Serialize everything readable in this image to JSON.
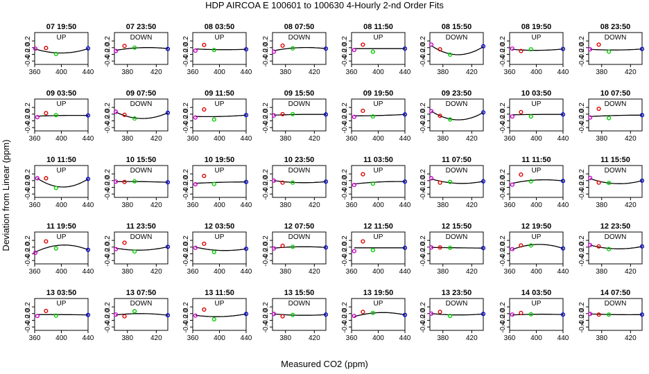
{
  "chart_data": {
    "type": "scatter",
    "title": "HDP   AIRCOA E   100601 to 100630   4-Hourly 2-nd Order Fits",
    "xlabel": "Measured CO2 (ppm)",
    "ylabel": "Deviation from Linear (ppm)",
    "xlim_wide": [
      360,
      440
    ],
    "xlim_narrow": [
      362,
      436
    ],
    "ylim": [
      -0.5,
      0.45
    ],
    "yticks": [
      -0.4,
      -0.2,
      0.0,
      0.2
    ],
    "ytick_labels": [
      "-0.4",
      "-0.2",
      "0.0",
      "0.2"
    ],
    "xticks_wide": [
      360,
      400,
      440
    ],
    "xticks_narrow": [
      380,
      420
    ],
    "point_colors": {
      "s1": "#cc00cc",
      "s2": "#dd0000",
      "s3": "#00cc00",
      "s4": "#0000cc"
    },
    "panels": [
      {
        "title": "07 19:50",
        "label": "UP",
        "narrow": false,
        "x": [
          361,
          377,
          392,
          440
        ],
        "y": [
          -0.03,
          -0.01,
          -0.19,
          -0.02
        ],
        "fit": [
          -0.04,
          -0.16,
          -0.03
        ]
      },
      {
        "title": "07 23:50",
        "label": "DOWN",
        "narrow": true,
        "x": [
          364,
          376,
          390,
          436
        ],
        "y": [
          -0.1,
          0.05,
          0.0,
          -0.04
        ],
        "fit": [
          -0.08,
          0.0,
          -0.03
        ]
      },
      {
        "title": "08 03:50",
        "label": "UP",
        "narrow": false,
        "x": [
          364,
          377,
          392,
          440
        ],
        "y": [
          -0.09,
          0.08,
          -0.07,
          -0.05
        ],
        "fit": [
          -0.04,
          -0.06,
          -0.05
        ]
      },
      {
        "title": "08 07:50",
        "label": "DOWN",
        "narrow": true,
        "x": [
          364,
          376,
          390,
          436
        ],
        "y": [
          -0.12,
          0.06,
          -0.02,
          -0.03
        ],
        "fit": [
          -0.09,
          0.0,
          -0.03
        ]
      },
      {
        "title": "08 11:50",
        "label": "UP",
        "narrow": false,
        "x": [
          364,
          377,
          392,
          440
        ],
        "y": [
          -0.07,
          0.09,
          -0.12,
          -0.03
        ],
        "fit": [
          -0.03,
          -0.03,
          -0.03
        ]
      },
      {
        "title": "08 15:50",
        "label": "DOWN",
        "narrow": true,
        "x": [
          364,
          376,
          390,
          436
        ],
        "y": [
          0.09,
          -0.05,
          -0.21,
          0.04
        ],
        "fit": [
          0.06,
          -0.21,
          0.03
        ]
      },
      {
        "title": "08 19:50",
        "label": "UP",
        "narrow": false,
        "x": [
          364,
          377,
          392,
          440
        ],
        "y": [
          -0.03,
          -0.1,
          -0.05,
          -0.04
        ],
        "fit": [
          -0.05,
          -0.08,
          -0.04
        ]
      },
      {
        "title": "08 23:50",
        "label": "DOWN",
        "narrow": true,
        "x": [
          364,
          376,
          390,
          436
        ],
        "y": [
          -0.05,
          0.09,
          -0.12,
          -0.04
        ],
        "fit": [
          -0.05,
          -0.07,
          -0.04
        ]
      },
      {
        "title": "09 03:50",
        "label": "UP",
        "narrow": false,
        "x": [
          364,
          377,
          392,
          440
        ],
        "y": [
          -0.09,
          0.03,
          -0.03,
          -0.04
        ],
        "fit": [
          -0.06,
          -0.04,
          -0.04
        ]
      },
      {
        "title": "09 07:50",
        "label": "DOWN",
        "narrow": true,
        "x": [
          364,
          376,
          390,
          436
        ],
        "y": [
          0.07,
          -0.02,
          -0.13,
          0.04
        ],
        "fit": [
          0.06,
          -0.13,
          0.04
        ]
      },
      {
        "title": "09 11:50",
        "label": "UP",
        "narrow": false,
        "x": [
          364,
          377,
          392,
          440
        ],
        "y": [
          -0.1,
          0.14,
          -0.16,
          -0.03
        ],
        "fit": [
          -0.07,
          -0.07,
          -0.03
        ]
      },
      {
        "title": "09 15:50",
        "label": "DOWN",
        "narrow": true,
        "x": [
          364,
          376,
          390,
          436
        ],
        "y": [
          -0.04,
          0.0,
          0.0,
          -0.01
        ],
        "fit": [
          -0.03,
          -0.01,
          -0.01
        ]
      },
      {
        "title": "09 19:50",
        "label": "UP",
        "narrow": false,
        "x": [
          364,
          377,
          392,
          440
        ],
        "y": [
          -0.08,
          0.1,
          -0.07,
          -0.01
        ],
        "fit": [
          -0.05,
          -0.04,
          -0.01
        ]
      },
      {
        "title": "09 23:50",
        "label": "DOWN",
        "narrow": true,
        "x": [
          364,
          376,
          390,
          436
        ],
        "y": [
          0.09,
          -0.05,
          -0.16,
          0.05
        ],
        "fit": [
          0.09,
          -0.17,
          0.05
        ]
      },
      {
        "title": "10 03:50",
        "label": "UP",
        "narrow": false,
        "x": [
          364,
          377,
          392,
          440
        ],
        "y": [
          -0.07,
          0.06,
          -0.07,
          -0.01
        ],
        "fit": [
          -0.02,
          -0.01,
          -0.01
        ]
      },
      {
        "title": "10 07:50",
        "label": "DOWN",
        "narrow": true,
        "x": [
          364,
          376,
          390,
          436
        ],
        "y": [
          -0.1,
          0.16,
          -0.12,
          -0.03
        ],
        "fit": [
          -0.07,
          -0.04,
          -0.03
        ]
      },
      {
        "title": "10 11:50",
        "label": "UP",
        "narrow": false,
        "x": [
          364,
          377,
          392,
          440
        ],
        "y": [
          0.07,
          0.07,
          -0.22,
          0.05
        ],
        "fit": [
          0.07,
          -0.19,
          0.05
        ]
      },
      {
        "title": "10 15:50",
        "label": "DOWN",
        "narrow": true,
        "x": [
          364,
          376,
          390,
          436
        ],
        "y": [
          -0.03,
          -0.04,
          -0.02,
          -0.05
        ],
        "fit": [
          -0.03,
          -0.03,
          -0.05
        ]
      },
      {
        "title": "10 19:50",
        "label": "UP",
        "narrow": false,
        "x": [
          364,
          377,
          392,
          440
        ],
        "y": [
          -0.11,
          0.14,
          -0.1,
          -0.04
        ],
        "fit": [
          -0.08,
          -0.05,
          -0.04
        ]
      },
      {
        "title": "10 23:50",
        "label": "DOWN",
        "narrow": true,
        "x": [
          364,
          376,
          390,
          436
        ],
        "y": [
          0.0,
          -0.06,
          -0.06,
          -0.03
        ],
        "fit": [
          0.0,
          -0.06,
          -0.03
        ]
      },
      {
        "title": "11 03:50",
        "label": "UP",
        "narrow": false,
        "x": [
          364,
          377,
          392,
          440
        ],
        "y": [
          -0.13,
          0.19,
          -0.09,
          -0.03
        ],
        "fit": [
          -0.1,
          -0.04,
          -0.03
        ]
      },
      {
        "title": "11 07:50",
        "label": "DOWN",
        "narrow": true,
        "x": [
          364,
          376,
          390,
          436
        ],
        "y": [
          0.07,
          -0.06,
          -0.04,
          -0.02
        ],
        "fit": [
          0.05,
          -0.08,
          -0.02
        ]
      },
      {
        "title": "11 11:50",
        "label": "UP",
        "narrow": false,
        "x": [
          364,
          377,
          392,
          440
        ],
        "y": [
          -0.12,
          0.18,
          -0.02,
          -0.01
        ],
        "fit": [
          -0.08,
          0.02,
          -0.01
        ]
      },
      {
        "title": "11 15:50",
        "label": "DOWN",
        "narrow": true,
        "x": [
          364,
          376,
          390,
          436
        ],
        "y": [
          0.08,
          -0.06,
          -0.07,
          0.0
        ],
        "fit": [
          0.06,
          -0.09,
          0.0
        ]
      },
      {
        "title": "11 19:50",
        "label": "UP",
        "narrow": false,
        "x": [
          361,
          377,
          392,
          440
        ],
        "y": [
          -0.17,
          0.17,
          -0.04,
          -0.08
        ],
        "fit": [
          -0.15,
          0.06,
          -0.08
        ]
      },
      {
        "title": "11 23:50",
        "label": "DOWN",
        "narrow": true,
        "x": [
          364,
          376,
          390,
          436
        ],
        "y": [
          -0.06,
          0.13,
          -0.13,
          0.01
        ],
        "fit": [
          -0.03,
          -0.09,
          0.01
        ]
      },
      {
        "title": "12 03:50",
        "label": "UP",
        "narrow": false,
        "x": [
          364,
          377,
          392,
          440
        ],
        "y": [
          -0.02,
          0.1,
          -0.15,
          -0.05
        ],
        "fit": [
          0.0,
          -0.1,
          -0.05
        ]
      },
      {
        "title": "12 07:50",
        "label": "DOWN",
        "narrow": true,
        "x": [
          364,
          376,
          390,
          436
        ],
        "y": [
          -0.04,
          0.04,
          0.01,
          -0.01
        ],
        "fit": [
          -0.03,
          0.01,
          -0.01
        ]
      },
      {
        "title": "12 11:50",
        "label": "UP",
        "narrow": false,
        "x": [
          364,
          377,
          392,
          440
        ],
        "y": [
          -0.12,
          0.17,
          -0.09,
          -0.02
        ],
        "fit": [
          -0.02,
          -0.02,
          -0.02
        ]
      },
      {
        "title": "12 15:50",
        "label": "DOWN",
        "narrow": true,
        "x": [
          364,
          376,
          390,
          436
        ],
        "y": [
          -0.01,
          -0.01,
          -0.02,
          -0.03
        ],
        "fit": [
          -0.01,
          -0.02,
          -0.03
        ]
      },
      {
        "title": "12 19:50",
        "label": "UP",
        "narrow": false,
        "x": [
          364,
          377,
          392,
          440
        ],
        "y": [
          -0.06,
          0.05,
          0.05,
          -0.04
        ],
        "fit": [
          -0.07,
          0.08,
          -0.04
        ]
      },
      {
        "title": "12 23:50",
        "label": "DOWN",
        "narrow": true,
        "x": [
          364,
          376,
          390,
          436
        ],
        "y": [
          0.06,
          0.02,
          -0.06,
          0.02
        ],
        "fit": [
          0.06,
          -0.05,
          0.02
        ]
      },
      {
        "title": "13 03:50",
        "label": "UP",
        "narrow": false,
        "x": [
          364,
          377,
          392,
          440
        ],
        "y": [
          -0.07,
          0.08,
          -0.06,
          -0.04
        ],
        "fit": [
          -0.03,
          -0.03,
          -0.04
        ]
      },
      {
        "title": "13 07:50",
        "label": "DOWN",
        "narrow": true,
        "x": [
          364,
          376,
          390,
          436
        ],
        "y": [
          -0.03,
          -0.08,
          0.07,
          -0.05
        ],
        "fit": [
          -0.04,
          0.0,
          -0.05
        ]
      },
      {
        "title": "13 11:50",
        "label": "UP",
        "narrow": false,
        "x": [
          364,
          377,
          392,
          440
        ],
        "y": [
          -0.06,
          0.12,
          -0.17,
          -0.01
        ],
        "fit": [
          -0.05,
          -0.09,
          -0.01
        ]
      },
      {
        "title": "13 15:50",
        "label": "DOWN",
        "narrow": true,
        "x": [
          364,
          376,
          390,
          436
        ],
        "y": [
          -0.01,
          -0.08,
          -0.04,
          -0.03
        ],
        "fit": [
          -0.01,
          -0.05,
          -0.03
        ]
      },
      {
        "title": "13 19:50",
        "label": "UP",
        "narrow": false,
        "x": [
          364,
          377,
          392,
          440
        ],
        "y": [
          -0.07,
          0.05,
          0.02,
          -0.04
        ],
        "fit": [
          -0.09,
          0.03,
          -0.04
        ]
      },
      {
        "title": "13 23:50",
        "label": "DOWN",
        "narrow": true,
        "x": [
          364,
          376,
          390,
          436
        ],
        "y": [
          0.0,
          0.05,
          -0.07,
          -0.01
        ],
        "fit": [
          0.0,
          -0.04,
          -0.01
        ]
      },
      {
        "title": "14 03:50",
        "label": "UP",
        "narrow": false,
        "x": [
          364,
          377,
          392,
          440
        ],
        "y": [
          -0.03,
          0.02,
          -0.02,
          -0.03
        ],
        "fit": [
          -0.04,
          -0.02,
          -0.03
        ]
      },
      {
        "title": "14 07:50",
        "label": "DOWN",
        "narrow": true,
        "x": [
          364,
          376,
          390,
          436
        ],
        "y": [
          -0.01,
          -0.03,
          -0.03,
          -0.03
        ],
        "fit": [
          -0.01,
          -0.03,
          -0.03
        ]
      }
    ]
  }
}
